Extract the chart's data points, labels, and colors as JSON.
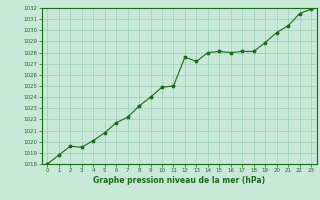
{
  "x": [
    0,
    1,
    2,
    3,
    4,
    5,
    6,
    7,
    8,
    9,
    10,
    11,
    12,
    13,
    14,
    15,
    16,
    17,
    18,
    19,
    20,
    21,
    22,
    23
  ],
  "y": [
    1018.0,
    1018.8,
    1019.6,
    1019.5,
    1020.1,
    1020.8,
    1021.7,
    1022.2,
    1023.2,
    1024.0,
    1024.9,
    1025.0,
    1027.6,
    1027.2,
    1028.0,
    1028.1,
    1028.0,
    1028.1,
    1028.1,
    1028.9,
    1029.8,
    1030.4,
    1031.5,
    1031.9
  ],
  "ylim": [
    1018,
    1032
  ],
  "xlim": [
    -0.5,
    23.5
  ],
  "yticks": [
    1018,
    1019,
    1020,
    1021,
    1022,
    1023,
    1024,
    1025,
    1026,
    1027,
    1028,
    1029,
    1030,
    1031,
    1032
  ],
  "xticks": [
    0,
    1,
    2,
    3,
    4,
    5,
    6,
    7,
    8,
    9,
    10,
    11,
    12,
    13,
    14,
    15,
    16,
    17,
    18,
    19,
    20,
    21,
    22,
    23
  ],
  "line_color": "#1a6b1a",
  "marker": "*",
  "bg_color": "#c8e8d8",
  "grid_color": "#99ccbb",
  "xlabel": "Graphe pression niveau de la mer (hPa)"
}
